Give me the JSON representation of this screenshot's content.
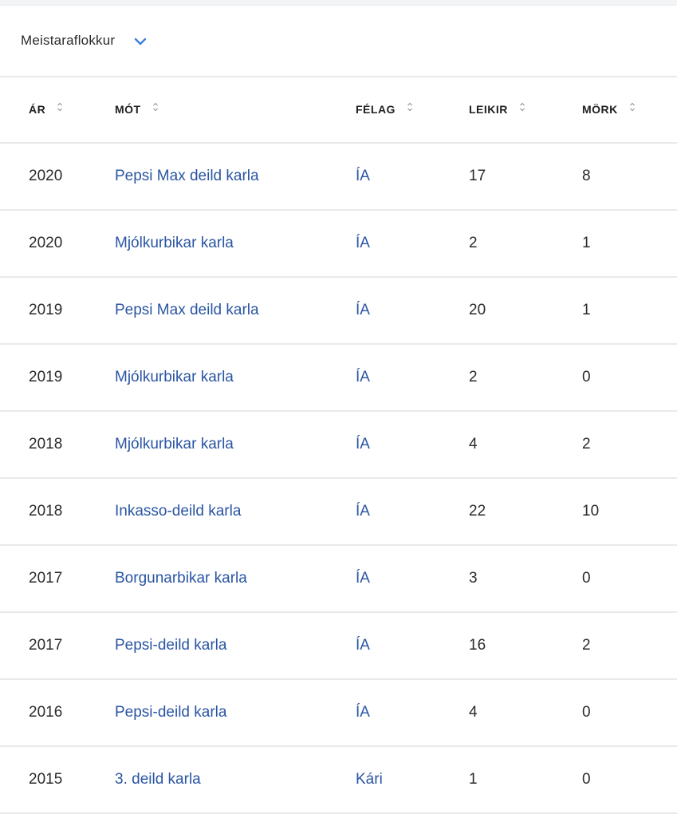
{
  "filter": {
    "selected": "Meistaraflokkur"
  },
  "table": {
    "headers": {
      "year": "ÁR",
      "tournament": "MÓT",
      "club": "FÉLAG",
      "games": "LEIKIR",
      "goals": "MÖRK"
    },
    "rows": [
      {
        "year": "2020",
        "tournament": "Pepsi Max deild karla",
        "club": "ÍA",
        "games": "17",
        "goals": "8"
      },
      {
        "year": "2020",
        "tournament": "Mjólkurbikar karla",
        "club": "ÍA",
        "games": "2",
        "goals": "1"
      },
      {
        "year": "2019",
        "tournament": "Pepsi Max deild karla",
        "club": "ÍA",
        "games": "20",
        "goals": "1"
      },
      {
        "year": "2019",
        "tournament": "Mjólkurbikar karla",
        "club": "ÍA",
        "games": "2",
        "goals": "0"
      },
      {
        "year": "2018",
        "tournament": "Mjólkurbikar karla",
        "club": "ÍA",
        "games": "4",
        "goals": "2"
      },
      {
        "year": "2018",
        "tournament": "Inkasso-deild karla",
        "club": "ÍA",
        "games": "22",
        "goals": "10"
      },
      {
        "year": "2017",
        "tournament": "Borgunarbikar karla",
        "club": "ÍA",
        "games": "3",
        "goals": "0"
      },
      {
        "year": "2017",
        "tournament": "Pepsi-deild karla",
        "club": "ÍA",
        "games": "16",
        "goals": "2"
      },
      {
        "year": "2016",
        "tournament": "Pepsi-deild karla",
        "club": "ÍA",
        "games": "4",
        "goals": "0"
      },
      {
        "year": "2015",
        "tournament": "3. deild karla",
        "club": "Kári",
        "games": "1",
        "goals": "0"
      }
    ]
  },
  "colors": {
    "link": "#2a55a3",
    "accent": "#3d7fd9",
    "divider": "#e8e9eb"
  },
  "icons": {
    "dropdown": "chevron-down-icon",
    "sort": "sort-icon"
  }
}
